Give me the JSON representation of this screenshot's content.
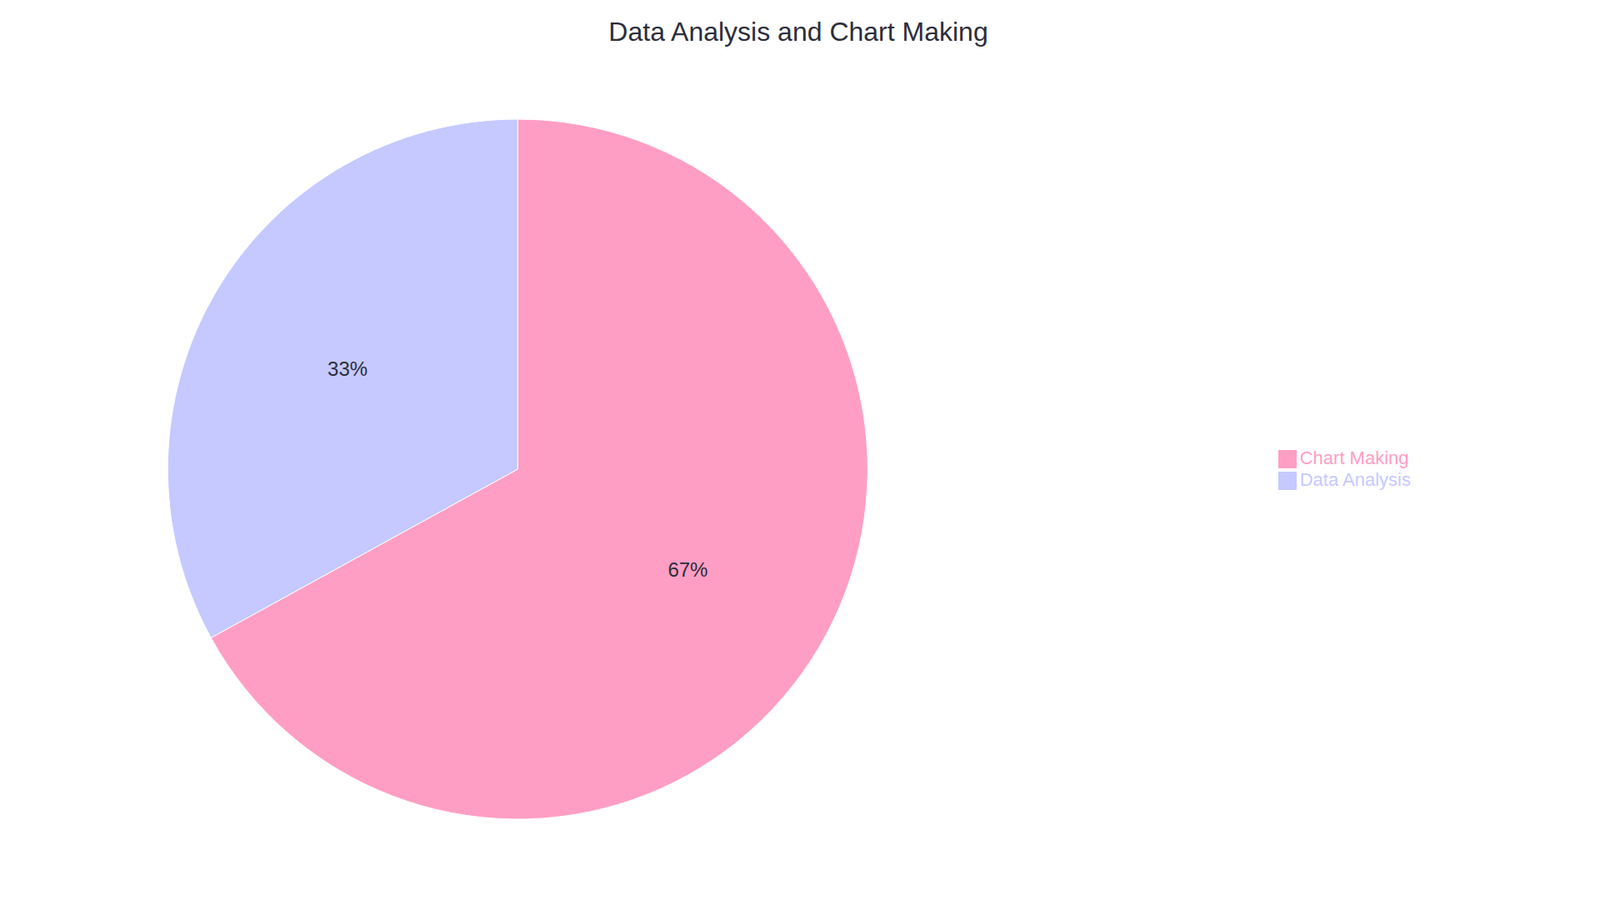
{
  "chart_data": {
    "type": "pie",
    "title": "Data Analysis and Chart Making",
    "categories": [
      "Chart Making",
      "Data Analysis"
    ],
    "values": [
      67,
      33
    ],
    "value_labels": [
      "67%",
      "33%"
    ],
    "colors": [
      "#FF9EC4",
      "#C5C9FF"
    ],
    "data_labels": true,
    "legend": "right"
  }
}
